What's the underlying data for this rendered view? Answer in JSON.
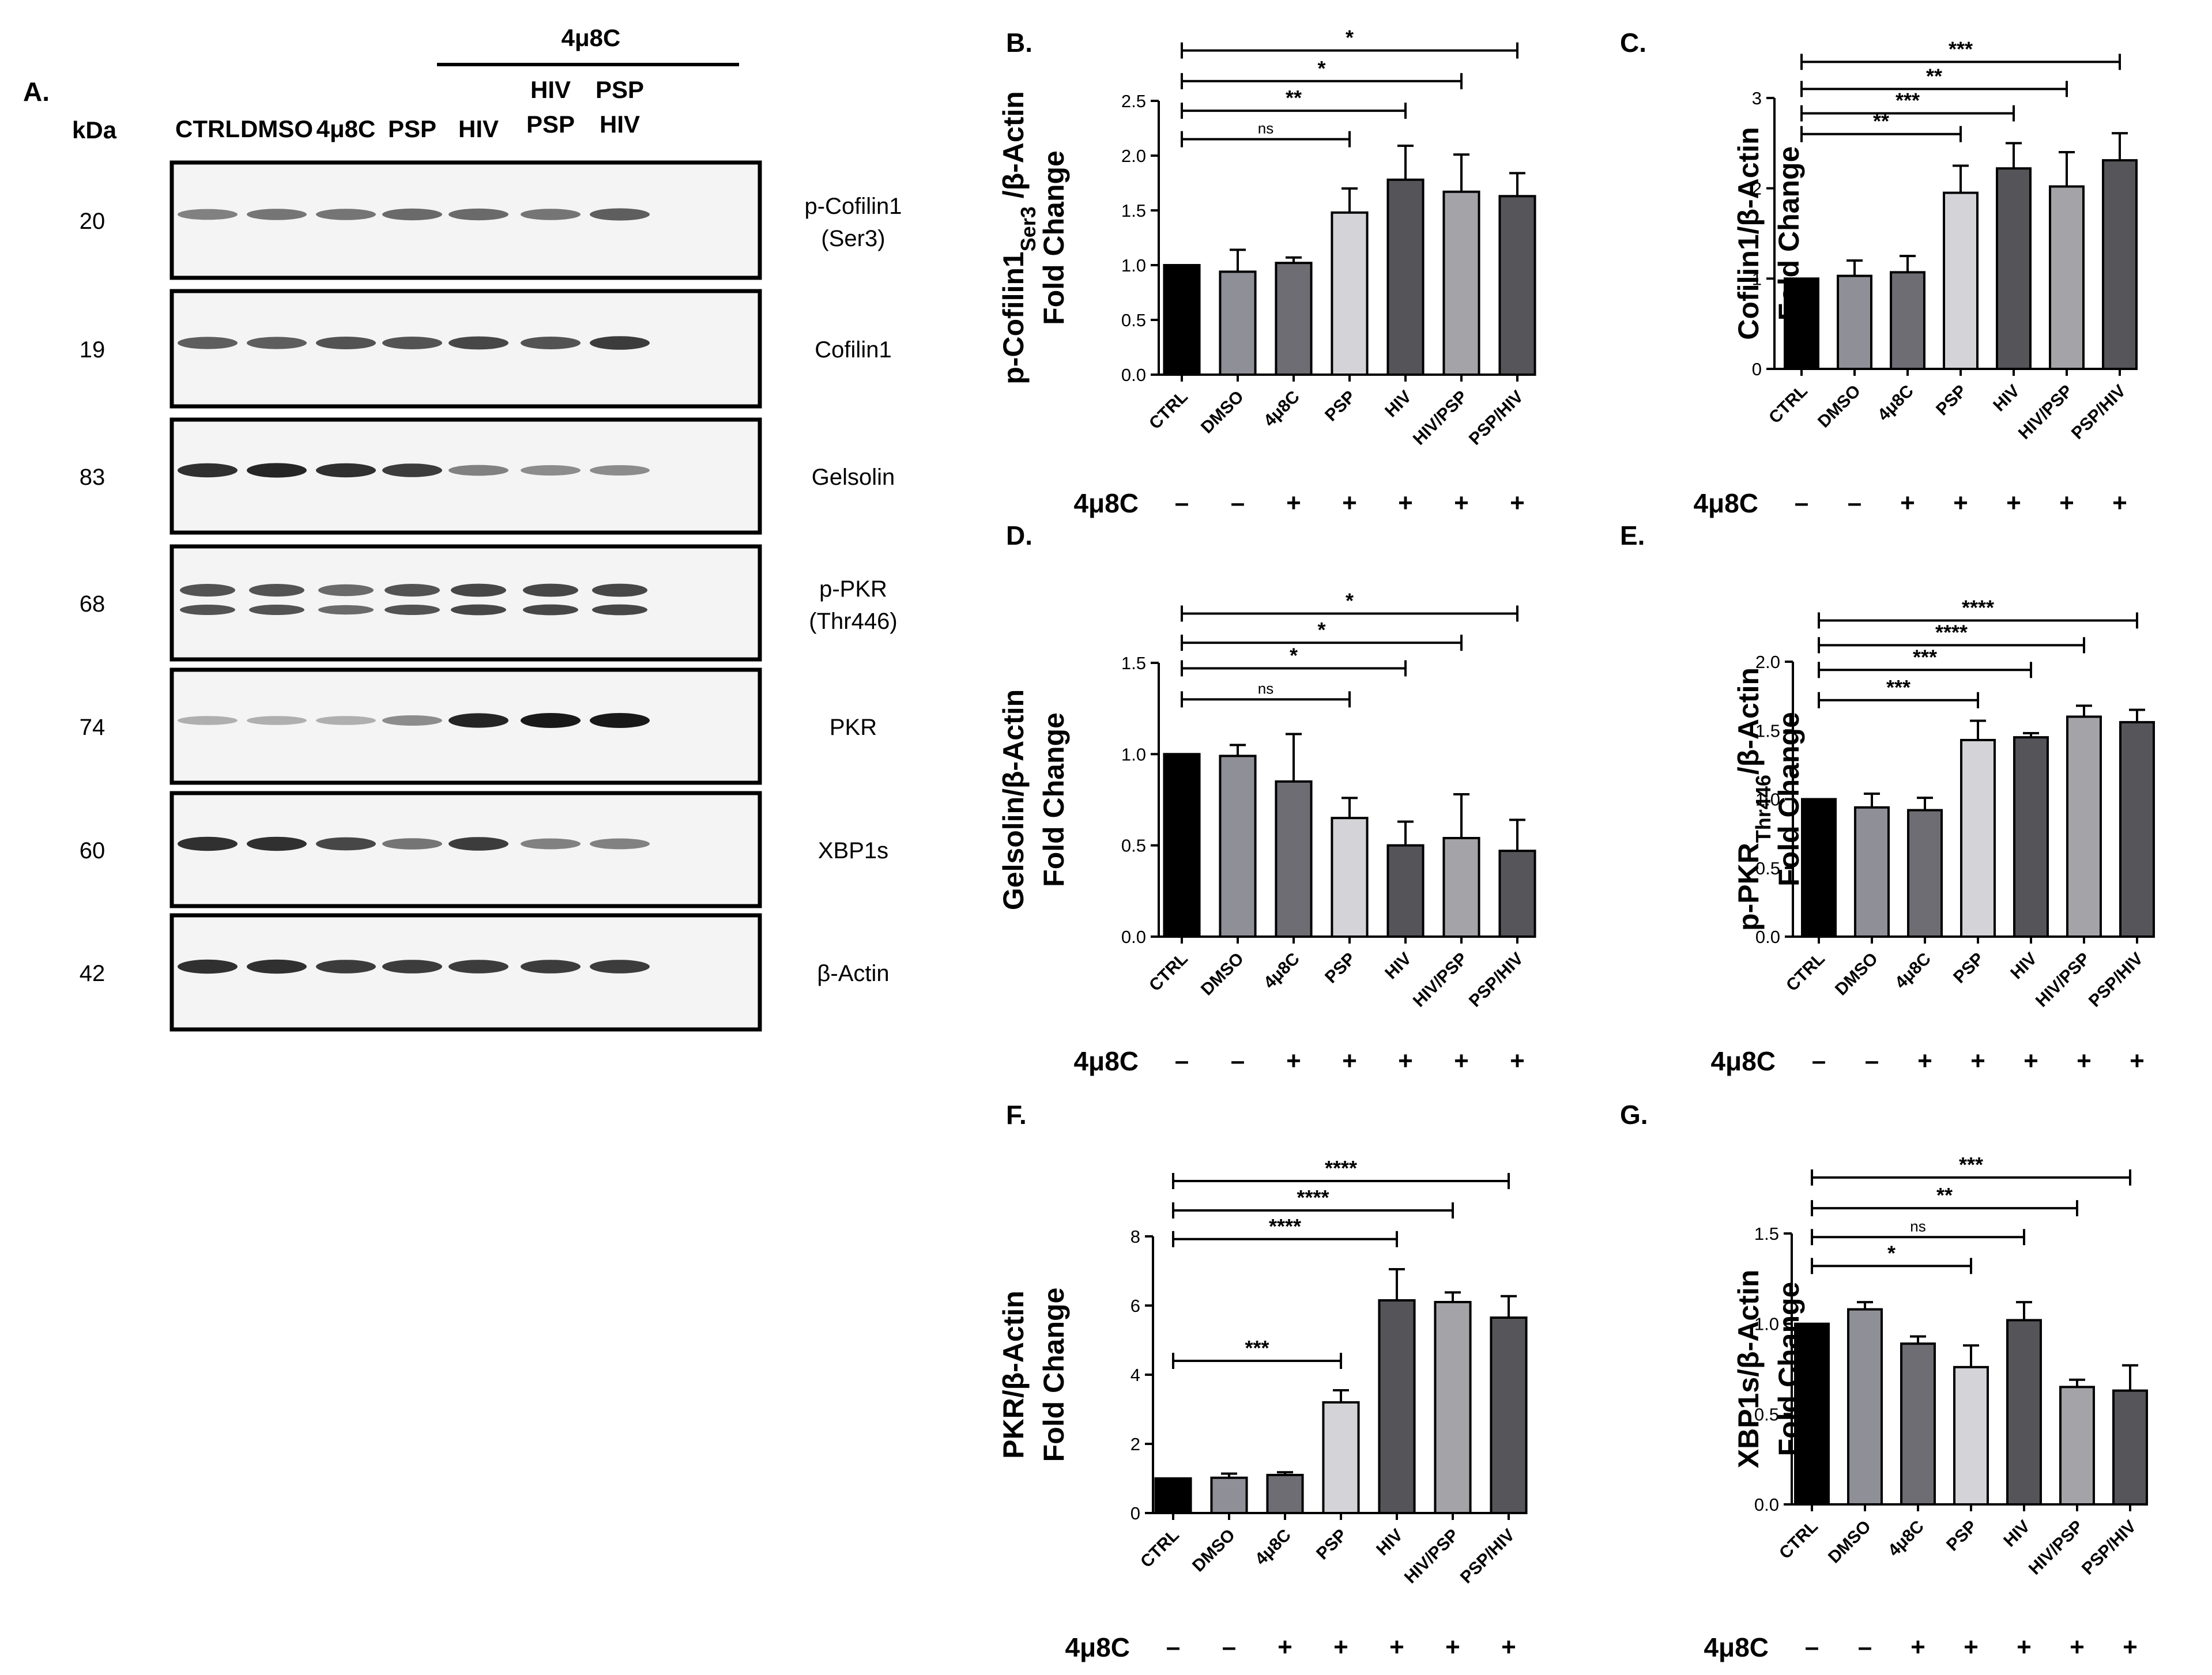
{
  "colors": {
    "CTRL": "#000000",
    "DMSO": "#8f8f97",
    "4μ8C": "#6d6d73",
    "PSP": "#d4d4d8",
    "HIV": "#545459",
    "HIV/PSP": "#a3a3a8",
    "PSP/HIV": "#55555a"
  },
  "blot": {
    "panel_label": "A.",
    "kda_header": "kDa",
    "treatment_header": "4μ8C",
    "lanes": [
      [
        "CTRL"
      ],
      [
        "DMSO"
      ],
      [
        "4μ8C"
      ],
      [
        "PSP"
      ],
      [
        "HIV"
      ],
      [
        "HIV",
        "PSP"
      ],
      [
        "PSP",
        "HIV"
      ]
    ],
    "rows": [
      {
        "kda": "20",
        "protein": [
          "p-Cofilin1",
          "(Ser3)"
        ],
        "intensity": [
          0.55,
          0.6,
          0.6,
          0.65,
          0.65,
          0.6,
          0.7
        ],
        "widthScale": [
          1,
          1,
          1,
          1,
          1,
          1,
          1
        ]
      },
      {
        "kda": "19",
        "protein": [
          "Cofilin1"
        ],
        "intensity": [
          0.7,
          0.7,
          0.75,
          0.75,
          0.8,
          0.75,
          0.85
        ],
        "widthScale": [
          1,
          1,
          1,
          1,
          1,
          1,
          1
        ]
      },
      {
        "kda": "83",
        "protein": [
          "Gelsolin"
        ],
        "intensity": [
          0.9,
          0.95,
          0.9,
          0.85,
          0.55,
          0.5,
          0.5
        ],
        "widthScale": [
          1,
          1,
          1,
          1,
          1,
          1,
          1
        ]
      },
      {
        "kda": "68",
        "protein": [
          "p-PKR",
          "(Thr446)"
        ],
        "intensity": [
          0.75,
          0.75,
          0.65,
          0.75,
          0.8,
          0.8,
          0.8
        ],
        "widthScale": [
          1,
          1,
          1,
          1,
          1,
          1,
          1
        ]
      },
      {
        "kda": "74",
        "protein": [
          "PKR"
        ],
        "intensity": [
          0.35,
          0.35,
          0.35,
          0.5,
          0.95,
          1.0,
          1.0
        ],
        "widthScale": [
          1,
          1,
          1,
          1,
          1,
          1,
          1
        ]
      },
      {
        "kda": "60",
        "protein": [
          "XBP1s"
        ],
        "intensity": [
          0.9,
          0.9,
          0.8,
          0.6,
          0.85,
          0.55,
          0.55
        ],
        "widthScale": [
          1,
          1,
          1,
          1,
          1,
          1,
          1
        ]
      },
      {
        "kda": "42",
        "protein": [
          "β-Actin"
        ],
        "intensity": [
          0.9,
          0.9,
          0.85,
          0.85,
          0.85,
          0.85,
          0.85
        ],
        "widthScale": [
          1,
          1,
          1,
          1,
          1,
          1,
          1
        ]
      }
    ]
  },
  "chart_data": [
    {
      "panel": "B.",
      "type": "bar",
      "ylabel_lines": [
        "p-Cofilin1_{Ser3} /β-Actin",
        "Fold Change"
      ],
      "categories": [
        "CTRL",
        "DMSO",
        "4μ8C",
        "PSP",
        "HIV",
        "HIV/PSP",
        "PSP/HIV"
      ],
      "values": [
        1.0,
        0.94,
        1.02,
        1.48,
        1.78,
        1.67,
        1.63
      ],
      "errors": [
        0,
        0.2,
        0.05,
        0.22,
        0.31,
        0.34,
        0.21
      ],
      "ylim": [
        0,
        2.5
      ],
      "yticks": [
        "0.0",
        "0.5",
        "1.0",
        "1.5",
        "2.0",
        "2.5"
      ],
      "treatment_label": "4μ8C",
      "treatment": [
        "–",
        "–",
        "+",
        "+",
        "+",
        "+",
        "+"
      ],
      "significance": [
        {
          "to": 3,
          "label": "ns",
          "y": 2.15
        },
        {
          "to": 4,
          "label": "**",
          "y": 2.41
        },
        {
          "to": 5,
          "label": "*",
          "y": 2.68
        },
        {
          "to": 6,
          "label": "*",
          "y": 2.96
        }
      ]
    },
    {
      "panel": "C.",
      "type": "bar",
      "ylabel_lines": [
        "Cofilin1/β-Actin",
        "Fold Change"
      ],
      "categories": [
        "CTRL",
        "DMSO",
        "4μ8C",
        "PSP",
        "HIV",
        "HIV/PSP",
        "PSP/HIV"
      ],
      "values": [
        1.0,
        1.03,
        1.07,
        1.95,
        2.22,
        2.02,
        2.31
      ],
      "errors": [
        0,
        0.17,
        0.18,
        0.3,
        0.28,
        0.38,
        0.3
      ],
      "ylim": [
        0,
        3
      ],
      "yticks": [
        "0",
        "1",
        "2",
        "3"
      ],
      "treatment_label": "4μ8C",
      "treatment": [
        "–",
        "–",
        "+",
        "+",
        "+",
        "+",
        "+"
      ],
      "significance": [
        {
          "to": 3,
          "label": "**",
          "y": 2.6
        },
        {
          "to": 4,
          "label": "***",
          "y": 2.83
        },
        {
          "to": 5,
          "label": "**",
          "y": 3.1
        },
        {
          "to": 6,
          "label": "***",
          "y": 3.4
        }
      ]
    },
    {
      "panel": "D.",
      "type": "bar",
      "ylabel_lines": [
        "Gelsolin/β-Actin",
        "Fold Change"
      ],
      "categories": [
        "CTRL",
        "DMSO",
        "4μ8C",
        "PSP",
        "HIV",
        "HIV/PSP",
        "PSP/HIV"
      ],
      "values": [
        1.0,
        0.99,
        0.85,
        0.65,
        0.5,
        0.54,
        0.47
      ],
      "errors": [
        0,
        0.06,
        0.26,
        0.11,
        0.13,
        0.24,
        0.17
      ],
      "ylim": [
        0,
        1.5
      ],
      "yticks": [
        "0.0",
        "0.5",
        "1.0",
        "1.5"
      ],
      "treatment_label": "4μ8C",
      "treatment": [
        "–",
        "–",
        "+",
        "+",
        "+",
        "+",
        "+"
      ],
      "significance": [
        {
          "to": 3,
          "label": "ns",
          "y": 1.3
        },
        {
          "to": 4,
          "label": "*",
          "y": 1.47
        },
        {
          "to": 5,
          "label": "*",
          "y": 1.61
        },
        {
          "to": 6,
          "label": "*",
          "y": 1.77
        }
      ]
    },
    {
      "panel": "E.",
      "type": "bar",
      "ylabel_lines": [
        "p-PKR_{Thr446}/β-Actin",
        "Fold Change"
      ],
      "categories": [
        "CTRL",
        "DMSO",
        "4μ8C",
        "PSP",
        "HIV",
        "HIV/PSP",
        "PSP/HIV"
      ],
      "values": [
        1.0,
        0.94,
        0.92,
        1.43,
        1.45,
        1.6,
        1.56
      ],
      "errors": [
        0,
        0.1,
        0.09,
        0.14,
        0.03,
        0.08,
        0.09
      ],
      "ylim": [
        0,
        2.0
      ],
      "yticks": [
        "0.0",
        "0.5",
        "1.0",
        "1.5",
        "2.0"
      ],
      "treatment_label": "4μ8C",
      "treatment": [
        "–",
        "–",
        "+",
        "+",
        "+",
        "+",
        "+"
      ],
      "significance": [
        {
          "to": 3,
          "label": "***",
          "y": 1.72
        },
        {
          "to": 4,
          "label": "***",
          "y": 1.94
        },
        {
          "to": 5,
          "label": "****",
          "y": 2.12
        },
        {
          "to": 6,
          "label": "****",
          "y": 2.3
        }
      ]
    },
    {
      "panel": "F.",
      "type": "bar",
      "ylabel_lines": [
        "PKR/β-Actin",
        "Fold Change"
      ],
      "categories": [
        "CTRL",
        "DMSO",
        "4μ8C",
        "PSP",
        "HIV",
        "HIV/PSP",
        "PSP/HIV"
      ],
      "values": [
        1.0,
        1.02,
        1.1,
        3.2,
        6.15,
        6.1,
        5.65
      ],
      "errors": [
        0,
        0.12,
        0.08,
        0.35,
        0.9,
        0.28,
        0.62
      ],
      "ylim": [
        0,
        8
      ],
      "yticks": [
        "0",
        "2",
        "4",
        "6",
        "8"
      ],
      "treatment_label": "4μ8C",
      "treatment": [
        "–",
        "–",
        "+",
        "+",
        "+",
        "+",
        "+"
      ],
      "significance": [
        {
          "to": 3,
          "label": "***",
          "y": 4.4
        },
        {
          "to": 4,
          "label": "****",
          "y": 7.92
        },
        {
          "to": 5,
          "label": "****",
          "y": 8.75
        },
        {
          "to": 6,
          "label": "****",
          "y": 9.6
        }
      ]
    },
    {
      "panel": "G.",
      "type": "bar",
      "ylabel_lines": [
        "XBP1s/β-Actin",
        "Fold Change"
      ],
      "categories": [
        "CTRL",
        "DMSO",
        "4μ8C",
        "PSP",
        "HIV",
        "HIV/PSP",
        "PSP/HIV"
      ],
      "values": [
        1.0,
        1.08,
        0.89,
        0.76,
        1.02,
        0.65,
        0.63
      ],
      "errors": [
        0,
        0.04,
        0.04,
        0.12,
        0.1,
        0.04,
        0.14
      ],
      "ylim": [
        0,
        1.5
      ],
      "yticks": [
        "0.0",
        "0.5",
        "1.0",
        "1.5"
      ],
      "treatment_label": "4μ8C",
      "treatment": [
        "–",
        "–",
        "+",
        "+",
        "+",
        "+",
        "+"
      ],
      "significance": [
        {
          "to": 3,
          "label": "*",
          "y": 1.32
        },
        {
          "to": 4,
          "label": "ns",
          "y": 1.48
        },
        {
          "to": 5,
          "label": "**",
          "y": 1.64
        },
        {
          "to": 6,
          "label": "***",
          "y": 1.81
        }
      ]
    }
  ]
}
